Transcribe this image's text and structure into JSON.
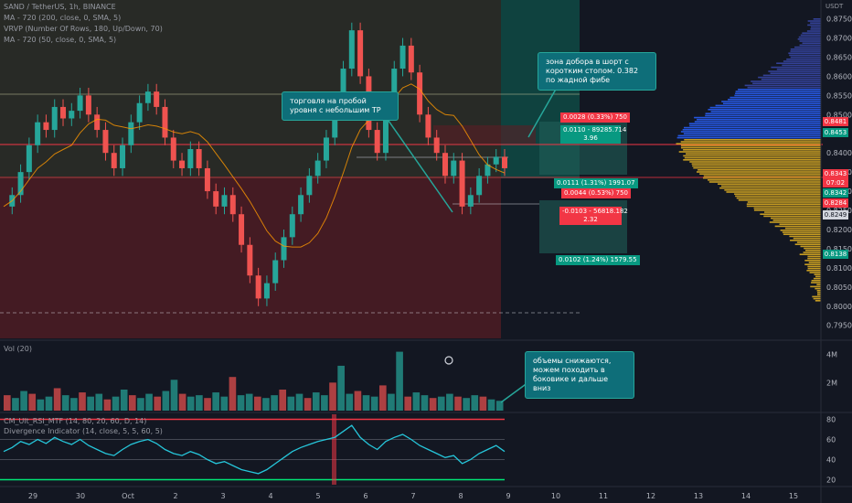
{
  "chart_data": {
    "type": "candlestick",
    "symbol_line": "SAND / TetherUS, 1h, BINANCE",
    "indicators": [
      "MA - 720 (200, close, 0, SMA, 5)",
      "VRVP (Number Of Rows, 180, Up/Down, 70)",
      "MA - 720 (50, close, 0, SMA, 5)"
    ],
    "currency": "USDT",
    "price_ticks": [
      "0.8750",
      "0.8700",
      "0.8650",
      "0.8600",
      "0.8550",
      "0.8500",
      "0.8400",
      "0.8350",
      "0.8300",
      "0.8250",
      "0.8200",
      "0.8150",
      "0.8100",
      "0.8050",
      "0.8000",
      "0.7950"
    ],
    "ylim": [
      0.7935,
      0.878
    ],
    "x_ticks": [
      "29",
      "30",
      "Oct",
      "2",
      "3",
      "4",
      "5",
      "6",
      "7",
      "8",
      "9",
      "10",
      "11",
      "12",
      "13",
      "14",
      "15"
    ],
    "price_series": [
      0.826,
      0.829,
      0.835,
      0.842,
      0.848,
      0.846,
      0.852,
      0.849,
      0.851,
      0.855,
      0.85,
      0.846,
      0.84,
      0.836,
      0.842,
      0.848,
      0.853,
      0.856,
      0.852,
      0.844,
      0.838,
      0.836,
      0.841,
      0.836,
      0.83,
      0.826,
      0.829,
      0.824,
      0.816,
      0.808,
      0.802,
      0.806,
      0.812,
      0.818,
      0.824,
      0.829,
      0.834,
      0.838,
      0.844,
      0.852,
      0.862,
      0.872,
      0.86,
      0.846,
      0.84,
      0.851,
      0.862,
      0.868,
      0.861,
      0.85,
      0.844,
      0.84,
      0.834,
      0.838,
      0.826,
      0.829,
      0.834,
      0.837,
      0.839,
      0.836
    ],
    "price_tags": {
      "p1": "0.8481",
      "p2": "0.8453",
      "p3": "0.8343",
      "p4": "07:02",
      "p5": "0.8342",
      "p6": "0.8284",
      "p7": "0.8249",
      "p8": "0.8138"
    },
    "position_labels": {
      "target_top": "0.0028 (0.33%) 750",
      "pnl_top_line1": "0.0110 - 89285.714",
      "pnl_top_line2": "3.96",
      "target_mid": "0.0111 (1.31%) 1991.07",
      "stop_mid": "0.0044 (0.53%) 750",
      "pnl_bottom_line1": "-0.0103 - 56818.182",
      "pnl_bottom_line2": "2.32",
      "target_bottom": "0.0102 (1.24%) 1579.55"
    },
    "volume": {
      "label": "Vol (20)",
      "ticks": [
        "4M",
        "2M"
      ],
      "values": [
        1.1,
        0.9,
        1.4,
        1.2,
        0.8,
        1.0,
        1.6,
        1.1,
        0.9,
        1.3,
        1.0,
        1.2,
        0.8,
        1.0,
        1.5,
        1.1,
        0.9,
        1.2,
        1.0,
        1.4,
        2.2,
        1.2,
        1.0,
        1.1,
        0.9,
        1.3,
        1.0,
        2.4,
        1.1,
        1.2,
        1.0,
        0.9,
        1.1,
        1.5,
        1.0,
        1.2,
        0.9,
        1.3,
        1.1,
        2.0,
        3.2,
        1.2,
        1.4,
        1.1,
        1.0,
        1.8,
        1.2,
        4.2,
        1.0,
        1.3,
        1.1,
        0.9,
        1.0,
        1.2,
        1.0,
        0.9,
        1.1,
        1.0,
        0.8,
        0.7
      ]
    },
    "oscillator": {
      "label_line1": "CM_Ult_RSI_MTF (14, 80, 20, 60, D, 14)",
      "label_line2": "Divergence Indicator (14, close, 5, 5, 60, 5)",
      "ticks": [
        "80",
        "60",
        "40",
        "20"
      ],
      "ylim": [
        15,
        85
      ],
      "values": [
        48,
        52,
        58,
        55,
        60,
        56,
        62,
        58,
        55,
        60,
        54,
        50,
        46,
        44,
        50,
        55,
        58,
        60,
        56,
        50,
        46,
        44,
        48,
        45,
        40,
        36,
        38,
        34,
        30,
        28,
        26,
        30,
        36,
        42,
        48,
        52,
        55,
        58,
        60,
        62,
        68,
        74,
        62,
        55,
        50,
        58,
        62,
        65,
        60,
        54,
        50,
        46,
        42,
        44,
        36,
        40,
        46,
        50,
        54,
        48
      ]
    },
    "annotations": {
      "trade_note": "торговля на пробой уровня с небольшим ТР",
      "short_note": "зона добора в шорт с коротким стопом. 0.382 по жадной фибе",
      "volume_note": "объемы снижаются, можем походить в боковике и дальше вниз"
    }
  }
}
